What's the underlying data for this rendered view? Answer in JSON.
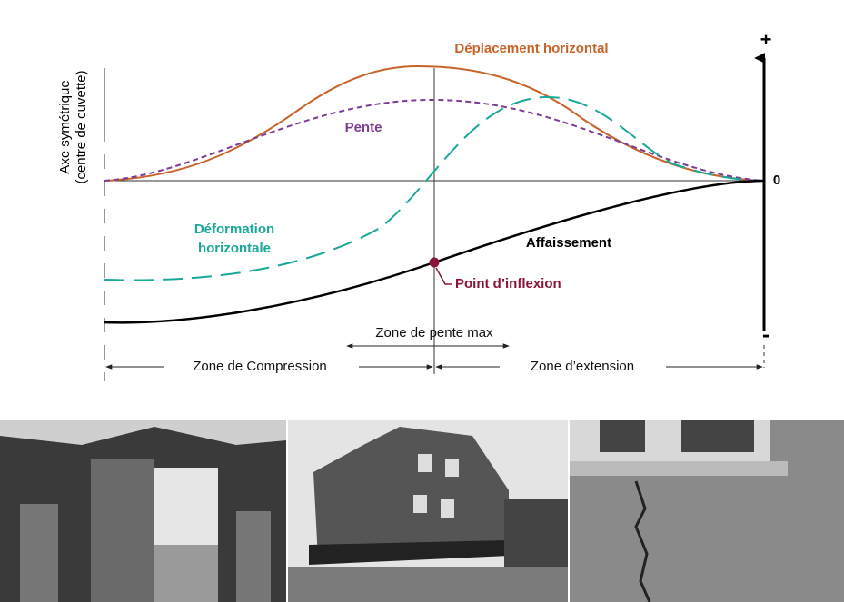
{
  "axis_label": [
    "Axe symétrique",
    "(centre de cuvette)"
  ],
  "scale": {
    "plus": "+",
    "zero": "0",
    "minus": "-"
  },
  "curves": {
    "horizontal_displacement": "Déplacement horizontal",
    "slope": "Pente",
    "horizontal_strain": [
      "Déformation",
      "horizontale"
    ],
    "subsidence": "Affaissement"
  },
  "inflection_point": "Point d’inflexion",
  "zones": {
    "max_slope": "Zone de pente max",
    "compression": "Zone de Compression",
    "extension": "Zone d’extension"
  }
}
